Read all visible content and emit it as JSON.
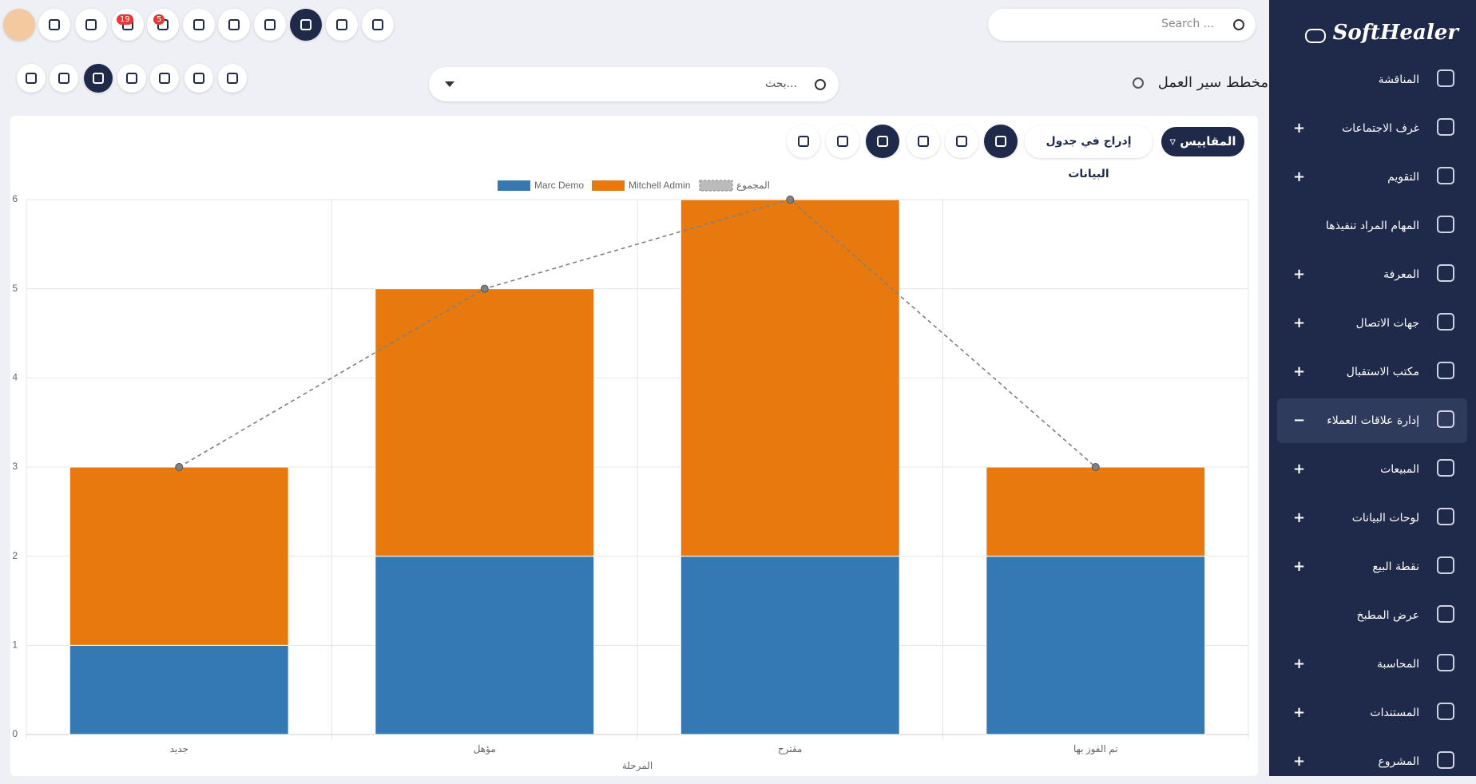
{
  "sidebar": {
    "brand": "SoftHealer",
    "menu": [
      {
        "label": "المناقشة",
        "expandable": false
      },
      {
        "label": "غرف الاجتماعات",
        "expandable": true
      },
      {
        "label": "التقويم",
        "expandable": true
      },
      {
        "label": "المهام المراد تنفيذها",
        "expandable": false
      },
      {
        "label": "المعرفة",
        "expandable": true
      },
      {
        "label": "جهات الاتصال",
        "expandable": true
      },
      {
        "label": "مكتب الاستقبال",
        "expandable": true
      },
      {
        "label": "إدارة علاقات العملاء",
        "expandable": true,
        "active": true
      },
      {
        "label": "المبيعات",
        "expandable": true
      },
      {
        "label": "لوحات البيانات",
        "expandable": true
      },
      {
        "label": "نقطة البيع",
        "expandable": true
      },
      {
        "label": "عرض المطبخ",
        "expandable": false
      },
      {
        "label": "المحاسبة",
        "expandable": true
      },
      {
        "label": "المستندات",
        "expandable": true
      },
      {
        "label": "المشروع",
        "expandable": true
      }
    ]
  },
  "topbar": {
    "search_placeholder": "Search ...",
    "badges": [
      19,
      5
    ]
  },
  "header": {
    "breadcrumb": "مخطط سير العمل",
    "search_placeholder": "بحث..."
  },
  "toolbar": {
    "measures": "المقاييس",
    "insert": "إدراج في جدول البيانات"
  },
  "chart_data": {
    "type": "bar",
    "stacked": true,
    "categories": [
      "جديد",
      "مؤهل",
      "مقترح",
      "تم الفوز بها"
    ],
    "x_label": "المرحلة",
    "series": [
      {
        "name": "Marc Demo",
        "color": "#3478b4",
        "values": [
          1,
          2,
          2,
          2
        ]
      },
      {
        "name": "Mitchell Admin",
        "color": "#e8790f",
        "values": [
          2,
          3,
          4,
          1
        ]
      },
      {
        "name": "المجموع",
        "type": "line",
        "dashed": true,
        "color": "#808080",
        "values": [
          3,
          5,
          6,
          3
        ]
      }
    ],
    "ylim": [
      0,
      6
    ],
    "yticks": [
      0,
      1,
      2,
      3,
      4,
      5,
      6
    ],
    "grid": true
  }
}
